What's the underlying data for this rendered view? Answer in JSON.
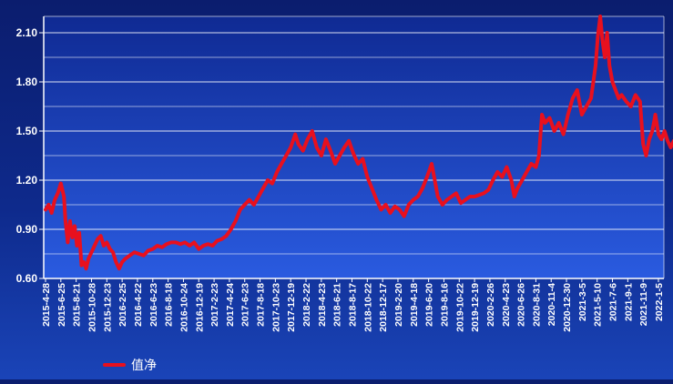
{
  "chart_data": {
    "type": "line",
    "y_ticks": [
      "0.60",
      "0.90",
      "1.20",
      "1.50",
      "1.80",
      "2.10"
    ],
    "ylim": [
      0.6,
      2.2
    ],
    "x_ticks": [
      "2015-4-28",
      "2015-6-25",
      "2015-8-21",
      "2015-10-28",
      "2015-12-23",
      "2016-2-25",
      "2016-4-22",
      "2016-6-23",
      "2016-8-18",
      "2016-10-24",
      "2016-12-19",
      "2017-2-23",
      "2017-4-24",
      "2017-6-23",
      "2017-8-18",
      "2017-10-23",
      "2017-12-19",
      "2018-2-22",
      "2018-4-23",
      "2018-6-21",
      "2018-8-17",
      "2018-10-22",
      "2018-12-17",
      "2019-2-20",
      "2019-4-18",
      "2019-6-20",
      "2019-8-16",
      "2019-10-22",
      "2019-12-19",
      "2020-2-26",
      "2020-4-23",
      "2020-6-26",
      "2020-8-31",
      "2020-11-4",
      "2020-12-30",
      "2021-3-5",
      "2021-5-10",
      "2021-7-6",
      "2021-9-1",
      "2021-11-9",
      "2022-1-5"
    ],
    "grid": true,
    "legend_position": "bottom-left",
    "series": [
      {
        "name": "值净",
        "color": "#e8101e",
        "points": [
          [
            0,
            1.02
          ],
          [
            0.2,
            1.05
          ],
          [
            0.4,
            1.0
          ],
          [
            0.6,
            1.08
          ],
          [
            0.8,
            1.12
          ],
          [
            1.0,
            1.18
          ],
          [
            1.2,
            1.1
          ],
          [
            1.3,
            0.95
          ],
          [
            1.45,
            0.82
          ],
          [
            1.6,
            0.95
          ],
          [
            1.75,
            0.85
          ],
          [
            1.9,
            0.92
          ],
          [
            2.05,
            0.8
          ],
          [
            2.2,
            0.88
          ],
          [
            2.35,
            0.68
          ],
          [
            2.5,
            0.7
          ],
          [
            2.65,
            0.66
          ],
          [
            2.8,
            0.72
          ],
          [
            3.0,
            0.76
          ],
          [
            3.2,
            0.8
          ],
          [
            3.4,
            0.84
          ],
          [
            3.6,
            0.86
          ],
          [
            3.8,
            0.8
          ],
          [
            4.0,
            0.82
          ],
          [
            4.2,
            0.78
          ],
          [
            4.4,
            0.76
          ],
          [
            4.6,
            0.7
          ],
          [
            4.8,
            0.66
          ],
          [
            5.0,
            0.7
          ],
          [
            5.2,
            0.72
          ],
          [
            5.5,
            0.74
          ],
          [
            5.8,
            0.76
          ],
          [
            6.1,
            0.75
          ],
          [
            6.4,
            0.74
          ],
          [
            6.7,
            0.77
          ],
          [
            7.0,
            0.78
          ],
          [
            7.3,
            0.8
          ],
          [
            7.6,
            0.79
          ],
          [
            7.9,
            0.81
          ],
          [
            8.2,
            0.82
          ],
          [
            8.5,
            0.82
          ],
          [
            8.8,
            0.81
          ],
          [
            9.1,
            0.82
          ],
          [
            9.4,
            0.8
          ],
          [
            9.7,
            0.82
          ],
          [
            10.0,
            0.78
          ],
          [
            10.3,
            0.8
          ],
          [
            10.6,
            0.81
          ],
          [
            10.9,
            0.8
          ],
          [
            11.2,
            0.83
          ],
          [
            11.5,
            0.84
          ],
          [
            11.8,
            0.86
          ],
          [
            12.1,
            0.9
          ],
          [
            12.4,
            0.95
          ],
          [
            12.7,
            1.02
          ],
          [
            13.0,
            1.05
          ],
          [
            13.3,
            1.08
          ],
          [
            13.6,
            1.05
          ],
          [
            13.9,
            1.1
          ],
          [
            14.2,
            1.15
          ],
          [
            14.5,
            1.2
          ],
          [
            14.8,
            1.18
          ],
          [
            15.1,
            1.25
          ],
          [
            15.4,
            1.3
          ],
          [
            15.7,
            1.35
          ],
          [
            16.0,
            1.4
          ],
          [
            16.3,
            1.48
          ],
          [
            16.5,
            1.42
          ],
          [
            16.8,
            1.38
          ],
          [
            17.1,
            1.45
          ],
          [
            17.4,
            1.5
          ],
          [
            17.7,
            1.4
          ],
          [
            18.0,
            1.35
          ],
          [
            18.3,
            1.45
          ],
          [
            18.6,
            1.38
          ],
          [
            18.9,
            1.3
          ],
          [
            19.2,
            1.35
          ],
          [
            19.5,
            1.4
          ],
          [
            19.8,
            1.44
          ],
          [
            20.1,
            1.36
          ],
          [
            20.4,
            1.3
          ],
          [
            20.7,
            1.33
          ],
          [
            21.0,
            1.22
          ],
          [
            21.3,
            1.15
          ],
          [
            21.6,
            1.08
          ],
          [
            21.9,
            1.02
          ],
          [
            22.2,
            1.05
          ],
          [
            22.5,
            1.0
          ],
          [
            22.8,
            1.04
          ],
          [
            23.1,
            1.02
          ],
          [
            23.4,
            0.98
          ],
          [
            23.7,
            1.05
          ],
          [
            24.0,
            1.08
          ],
          [
            24.3,
            1.1
          ],
          [
            24.6,
            1.15
          ],
          [
            24.9,
            1.22
          ],
          [
            25.2,
            1.3
          ],
          [
            25.4,
            1.2
          ],
          [
            25.6,
            1.1
          ],
          [
            25.9,
            1.05
          ],
          [
            26.2,
            1.08
          ],
          [
            26.5,
            1.1
          ],
          [
            26.8,
            1.12
          ],
          [
            27.1,
            1.06
          ],
          [
            27.4,
            1.08
          ],
          [
            27.7,
            1.1
          ],
          [
            28.0,
            1.1
          ],
          [
            28.3,
            1.11
          ],
          [
            28.6,
            1.12
          ],
          [
            28.9,
            1.14
          ],
          [
            29.2,
            1.2
          ],
          [
            29.5,
            1.25
          ],
          [
            29.8,
            1.22
          ],
          [
            30.1,
            1.28
          ],
          [
            30.4,
            1.2
          ],
          [
            30.6,
            1.1
          ],
          [
            30.8,
            1.15
          ],
          [
            31.1,
            1.2
          ],
          [
            31.4,
            1.25
          ],
          [
            31.7,
            1.3
          ],
          [
            32.0,
            1.28
          ],
          [
            32.2,
            1.35
          ],
          [
            32.4,
            1.6
          ],
          [
            32.6,
            1.55
          ],
          [
            32.9,
            1.58
          ],
          [
            33.2,
            1.5
          ],
          [
            33.5,
            1.55
          ],
          [
            33.8,
            1.48
          ],
          [
            34.1,
            1.6
          ],
          [
            34.4,
            1.7
          ],
          [
            34.7,
            1.75
          ],
          [
            35.0,
            1.6
          ],
          [
            35.3,
            1.65
          ],
          [
            35.6,
            1.7
          ],
          [
            35.9,
            1.9
          ],
          [
            36.05,
            2.08
          ],
          [
            36.2,
            2.2
          ],
          [
            36.35,
            2.05
          ],
          [
            36.5,
            1.95
          ],
          [
            36.65,
            2.1
          ],
          [
            36.8,
            1.9
          ],
          [
            37.0,
            1.8
          ],
          [
            37.2,
            1.75
          ],
          [
            37.4,
            1.7
          ],
          [
            37.6,
            1.72
          ],
          [
            37.9,
            1.68
          ],
          [
            38.2,
            1.65
          ],
          [
            38.5,
            1.72
          ],
          [
            38.8,
            1.68
          ],
          [
            39.0,
            1.42
          ],
          [
            39.2,
            1.35
          ],
          [
            39.4,
            1.45
          ],
          [
            39.6,
            1.5
          ],
          [
            39.8,
            1.6
          ],
          [
            40.0,
            1.48
          ],
          [
            40.2,
            1.45
          ],
          [
            40.4,
            1.5
          ],
          [
            40.6,
            1.44
          ],
          [
            40.8,
            1.4
          ],
          [
            41.0,
            1.44
          ],
          [
            41.2,
            1.36
          ],
          [
            41.4,
            1.33
          ],
          [
            41.6,
            1.38
          ],
          [
            41.8,
            1.42
          ]
        ]
      }
    ]
  }
}
